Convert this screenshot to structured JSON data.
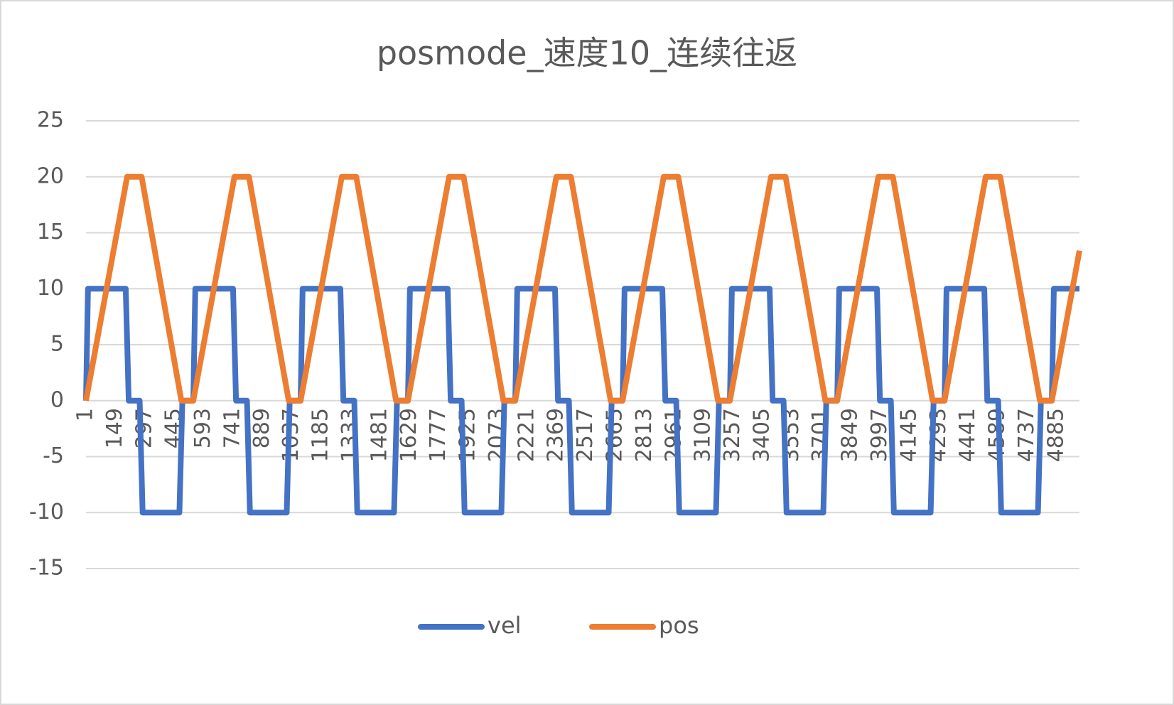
{
  "chart_data": {
    "type": "line",
    "title": "posmode_速度10_连续往返",
    "xlim": [
      1,
      5000
    ],
    "xticks": [
      1,
      149,
      297,
      445,
      593,
      741,
      889,
      1037,
      1185,
      1333,
      1481,
      1629,
      1777,
      1925,
      2073,
      2221,
      2369,
      2517,
      2665,
      2813,
      2961,
      3109,
      3257,
      3405,
      3553,
      3701,
      3849,
      3997,
      4145,
      4293,
      4441,
      4589,
      4737,
      4885
    ],
    "ylim": [
      -15,
      25
    ],
    "yticks": [
      -15,
      -10,
      -5,
      0,
      5,
      10,
      15,
      20,
      25
    ],
    "grid": true,
    "legend": "bottom",
    "series": [
      {
        "name": "vel",
        "color": "#4472c4",
        "x": [
          1,
          11,
          201,
          216,
          271,
          286,
          471,
          486,
          541,
          551,
          741,
          756,
          811,
          826,
          1011,
          1026,
          1081,
          1091,
          1281,
          1296,
          1351,
          1366,
          1551,
          1566,
          1621,
          1631,
          1821,
          1836,
          1891,
          1906,
          2091,
          2106,
          2161,
          2171,
          2361,
          2376,
          2431,
          2446,
          2631,
          2646,
          2701,
          2711,
          2901,
          2916,
          2971,
          2986,
          3171,
          3186,
          3241,
          3251,
          3441,
          3456,
          3511,
          3526,
          3711,
          3726,
          3781,
          3791,
          3981,
          3996,
          4051,
          4066,
          4251,
          4266,
          4321,
          4331,
          4521,
          4536,
          4591,
          4606,
          4791,
          4806,
          4861,
          4871,
          5000
        ],
        "values": [
          0,
          10,
          10,
          0,
          0,
          -10,
          -10,
          0,
          0,
          10,
          10,
          0,
          0,
          -10,
          -10,
          0,
          0,
          10,
          10,
          0,
          0,
          -10,
          -10,
          0,
          0,
          10,
          10,
          0,
          0,
          -10,
          -10,
          0,
          0,
          10,
          10,
          0,
          0,
          -10,
          -10,
          0,
          0,
          10,
          10,
          0,
          0,
          -10,
          -10,
          0,
          0,
          10,
          10,
          0,
          0,
          -10,
          -10,
          0,
          0,
          10,
          10,
          0,
          0,
          -10,
          -10,
          0,
          0,
          10,
          10,
          0,
          0,
          -10,
          -10,
          0,
          0,
          10,
          10
        ]
      },
      {
        "name": "pos",
        "color": "#ed7d31",
        "x": [
          1,
          208,
          281,
          481,
          541,
          748,
          821,
          1021,
          1081,
          1288,
          1361,
          1561,
          1621,
          1828,
          1901,
          2101,
          2161,
          2368,
          2441,
          2641,
          2701,
          2908,
          2981,
          3181,
          3241,
          3448,
          3521,
          3721,
          3781,
          3988,
          4061,
          4261,
          4321,
          4528,
          4601,
          4801,
          4861,
          5000
        ],
        "values": [
          0,
          20,
          20,
          0,
          0,
          20,
          20,
          0,
          0,
          20,
          20,
          0,
          0,
          20,
          20,
          0,
          0,
          20,
          20,
          0,
          0,
          20,
          20,
          0,
          0,
          20,
          20,
          0,
          0,
          20,
          20,
          0,
          0,
          20,
          20,
          0,
          0,
          13.4
        ]
      }
    ]
  }
}
